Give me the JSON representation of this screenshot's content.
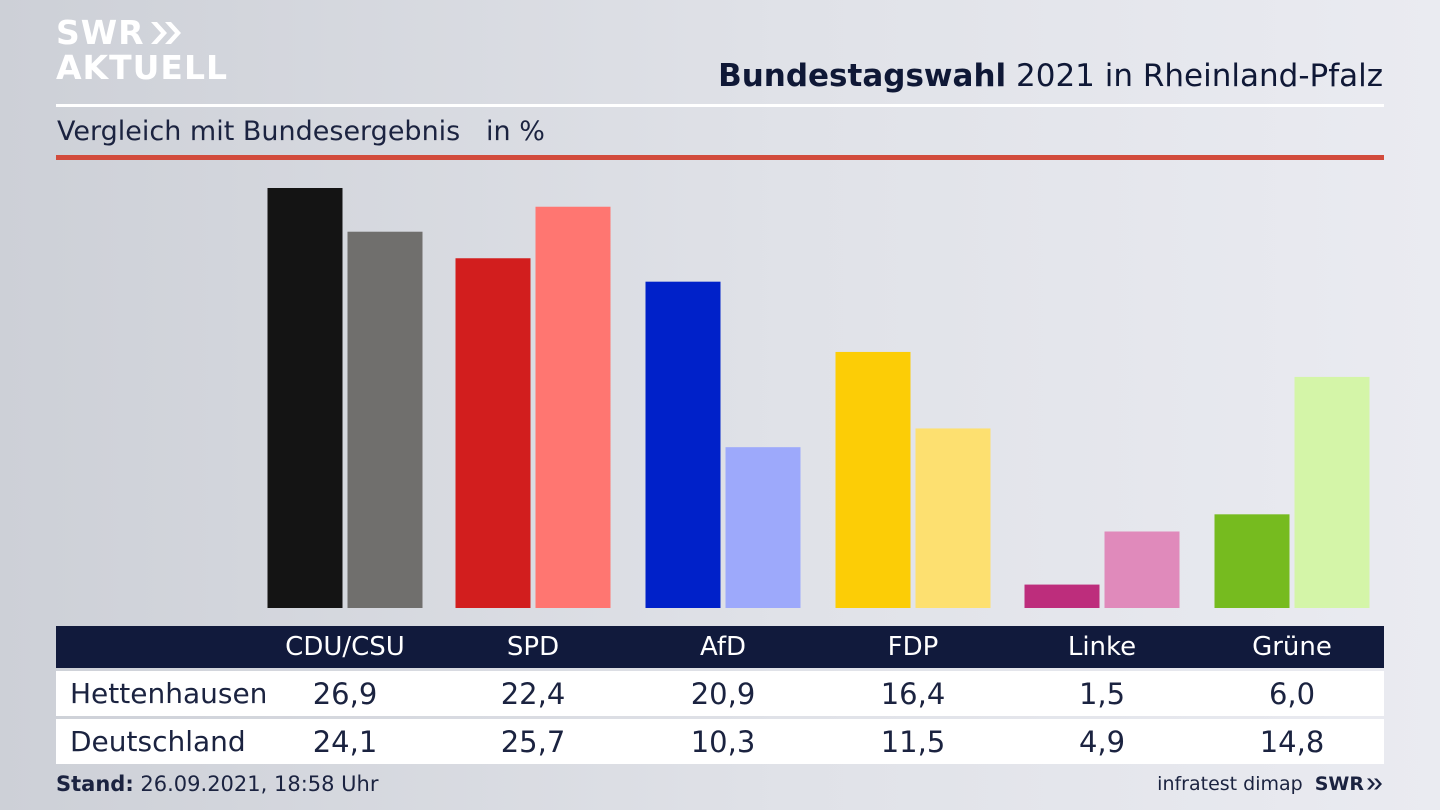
{
  "brand": {
    "line1": "SWR",
    "line2": "AKTUELL",
    "footer_logo": "SWR",
    "arrow_icon": "double-chevron-right-icon"
  },
  "header": {
    "title_bold": "Bundestagswahl",
    "title_rest": " 2021 in Rheinland-Pfalz"
  },
  "subtitle": "Vergleich mit Bundesergebnis   in %",
  "colors": {
    "accent_rule": "#d24b3c",
    "table_header": "#111a3c"
  },
  "chart_data": {
    "type": "bar",
    "title": "Bundestagswahl 2021 in Rheinland-Pfalz",
    "subtitle": "Vergleich mit Bundesergebnis",
    "ylabel": "in %",
    "ylim": [
      0,
      27
    ],
    "categories": [
      "CDU/CSU",
      "SPD",
      "AfD",
      "FDP",
      "Linke",
      "Grüne"
    ],
    "series": [
      {
        "name": "Hettenhausen",
        "values": [
          26.9,
          22.4,
          20.9,
          16.4,
          1.5,
          6.0
        ],
        "colors": [
          "#141414",
          "#d21e1e",
          "#0021c9",
          "#fccd06",
          "#bd2d7c",
          "#76bb1f"
        ]
      },
      {
        "name": "Deutschland",
        "values": [
          24.1,
          25.7,
          10.3,
          11.5,
          4.9,
          14.8
        ],
        "colors": [
          "#706f6d",
          "#ff7671",
          "#9da9fb",
          "#fde070",
          "#e08abb",
          "#d4f5a8"
        ]
      }
    ]
  },
  "table": {
    "headers": [
      "CDU/CSU",
      "SPD",
      "AfD",
      "FDP",
      "Linke",
      "Grüne"
    ],
    "rows": [
      {
        "label": "Hettenhausen",
        "values": [
          "26,9",
          "22,4",
          "20,9",
          "16,4",
          "1,5",
          "6,0"
        ]
      },
      {
        "label": "Deutschland",
        "values": [
          "24,1",
          "25,7",
          "10,3",
          "11,5",
          "4,9",
          "14,8"
        ]
      }
    ]
  },
  "footer": {
    "stand_label": "Stand:",
    "stand_value": " 26.09.2021, 18:58 Uhr",
    "source": "infratest dimap"
  }
}
